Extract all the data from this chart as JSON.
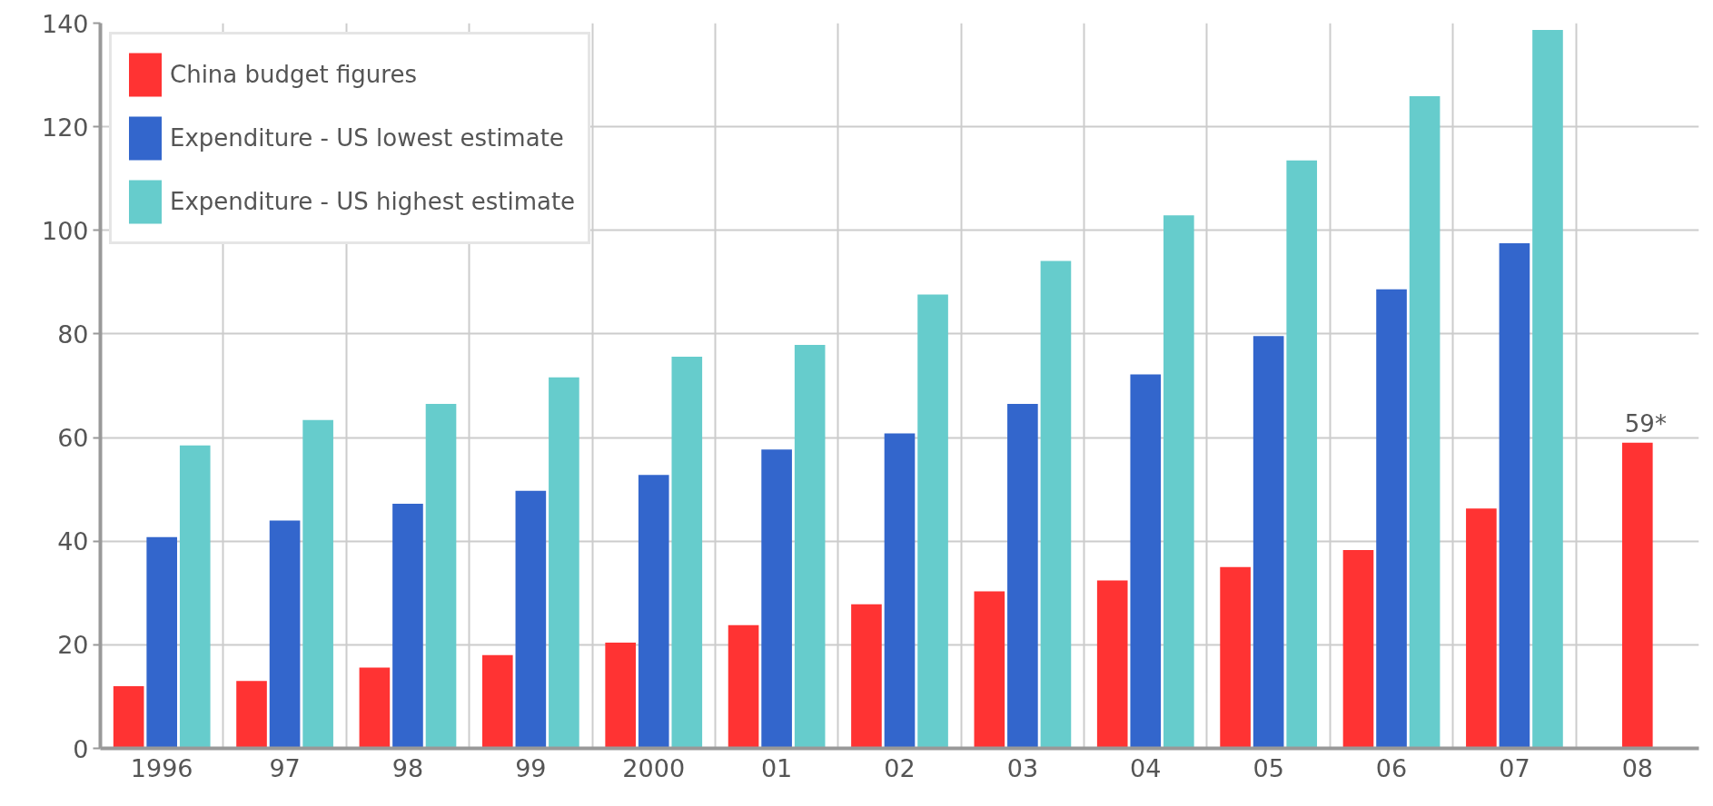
{
  "chart_data": {
    "type": "bar",
    "categories": [
      "1996",
      "97",
      "98",
      "99",
      "2000",
      "01",
      "02",
      "03",
      "04",
      "05",
      "06",
      "07",
      "08"
    ],
    "series": [
      {
        "name": "China budget figures",
        "color": "#ff3333",
        "values": [
          12,
          13,
          15.6,
          18,
          20.4,
          23.8,
          27.8,
          30.3,
          32.4,
          35,
          38.3,
          46.3,
          59
        ]
      },
      {
        "name": "Expenditure - US lowest estimate",
        "color": "#3366cc",
        "values": [
          40.8,
          44,
          47.2,
          49.7,
          52.8,
          57.7,
          60.8,
          66.5,
          72.2,
          79.6,
          88.6,
          97.5,
          null
        ]
      },
      {
        "name": "Expenditure - US highest estimate",
        "color": "#66cccc",
        "values": [
          58.5,
          63.4,
          66.5,
          71.6,
          75.6,
          77.9,
          87.6,
          94.1,
          102.9,
          113.5,
          125.9,
          138.7,
          null
        ]
      }
    ],
    "ylim": [
      0,
      140
    ],
    "yticks": [
      0,
      20,
      40,
      60,
      80,
      100,
      120,
      140
    ],
    "grid": true,
    "legend": "top left",
    "annotations": [
      {
        "text": "59*",
        "x": "08",
        "y": 59
      }
    ]
  }
}
